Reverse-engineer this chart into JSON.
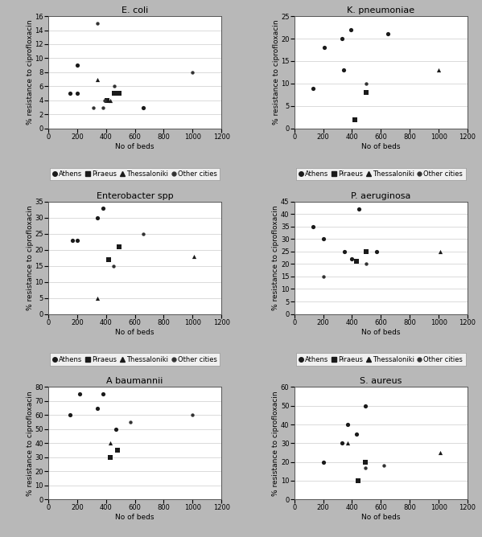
{
  "panels": [
    {
      "title": "E. coli",
      "ylabel": "% resistance to ciprofloxacin",
      "xlabel": "No of beds",
      "xlim": [
        0,
        1200
      ],
      "ylim": [
        0,
        16
      ],
      "yticks": [
        0,
        2,
        4,
        6,
        8,
        10,
        12,
        14,
        16
      ],
      "xticks": [
        0,
        200,
        400,
        600,
        800,
        1000,
        1200
      ],
      "series": {
        "Athens": {
          "x": [
            150,
            200,
            200,
            660
          ],
          "y": [
            5,
            9,
            5,
            3
          ]
        },
        "Piraeus": {
          "x": [
            410,
            460,
            490
          ],
          "y": [
            4,
            5,
            5
          ]
        },
        "Thessaloniki": {
          "x": [
            340,
            430
          ],
          "y": [
            7,
            4
          ]
        },
        "Other cities": {
          "x": [
            310,
            340,
            380,
            390,
            460,
            1000
          ],
          "y": [
            3,
            15,
            3,
            4,
            6,
            8
          ]
        }
      }
    },
    {
      "title": "K. pneumoniae",
      "ylabel": "% resistance to ciprofloxacin",
      "xlabel": "No of beds",
      "xlim": [
        0,
        1200
      ],
      "ylim": [
        0,
        25
      ],
      "yticks": [
        0,
        5,
        10,
        15,
        20,
        25
      ],
      "xticks": [
        0,
        200,
        400,
        600,
        800,
        1000,
        1200
      ],
      "series": {
        "Athens": {
          "x": [
            130,
            210,
            330,
            340,
            390,
            650
          ],
          "y": [
            9,
            18,
            20,
            13,
            22,
            21
          ]
        },
        "Piraeus": {
          "x": [
            420,
            500
          ],
          "y": [
            2,
            8
          ]
        },
        "Thessaloniki": {
          "x": [
            1000
          ],
          "y": [
            13
          ]
        },
        "Other cities": {
          "x": [
            500
          ],
          "y": [
            10
          ]
        }
      }
    },
    {
      "title": "Enterobacter spp",
      "ylabel": "% resistance to ciprofloxacin",
      "xlabel": "No of beds",
      "xlim": [
        0,
        1200
      ],
      "ylim": [
        0,
        35
      ],
      "yticks": [
        0,
        5,
        10,
        15,
        20,
        25,
        30,
        35
      ],
      "xticks": [
        0,
        200,
        400,
        600,
        800,
        1000,
        1200
      ],
      "series": {
        "Athens": {
          "x": [
            170,
            200,
            340,
            380
          ],
          "y": [
            23,
            23,
            30,
            33
          ]
        },
        "Piraeus": {
          "x": [
            420,
            490
          ],
          "y": [
            17,
            21
          ]
        },
        "Thessaloniki": {
          "x": [
            340,
            1010
          ],
          "y": [
            5,
            18
          ]
        },
        "Other cities": {
          "x": [
            450,
            660
          ],
          "y": [
            15,
            25
          ]
        }
      }
    },
    {
      "title": "P. aeruginosa",
      "ylabel": "% resistance to ciprofloxacin",
      "xlabel": "No of beds",
      "xlim": [
        0,
        1200
      ],
      "ylim": [
        0,
        45
      ],
      "yticks": [
        0,
        5,
        10,
        15,
        20,
        25,
        30,
        35,
        40,
        45
      ],
      "xticks": [
        0,
        200,
        400,
        600,
        800,
        1000,
        1200
      ],
      "series": {
        "Athens": {
          "x": [
            130,
            200,
            350,
            400,
            450,
            570
          ],
          "y": [
            35,
            30,
            25,
            22,
            42,
            25
          ]
        },
        "Piraeus": {
          "x": [
            430,
            500
          ],
          "y": [
            21,
            25
          ]
        },
        "Thessaloniki": {
          "x": [
            1010
          ],
          "y": [
            25
          ]
        },
        "Other cities": {
          "x": [
            200,
            500
          ],
          "y": [
            15,
            20
          ]
        }
      }
    },
    {
      "title": "A baumannii",
      "ylabel": "% resistance to ciprofloxacin",
      "xlabel": "No of beds",
      "xlim": [
        0,
        1200
      ],
      "ylim": [
        0,
        80
      ],
      "yticks": [
        0,
        10,
        20,
        30,
        40,
        50,
        60,
        70,
        80
      ],
      "xticks": [
        0,
        200,
        400,
        600,
        800,
        1000,
        1200
      ],
      "series": {
        "Athens": {
          "x": [
            150,
            220,
            340,
            380,
            470
          ],
          "y": [
            60,
            75,
            65,
            75,
            50
          ]
        },
        "Piraeus": {
          "x": [
            430,
            480
          ],
          "y": [
            30,
            35
          ]
        },
        "Thessaloniki": {
          "x": [
            430
          ],
          "y": [
            40
          ]
        },
        "Other cities": {
          "x": [
            570,
            1000
          ],
          "y": [
            55,
            60
          ]
        }
      }
    },
    {
      "title": "S. aureus",
      "ylabel": "% resistance to ciprofloxacin",
      "xlabel": "No of beds",
      "xlim": [
        0,
        1200
      ],
      "ylim": [
        0,
        60
      ],
      "yticks": [
        0,
        10,
        20,
        30,
        40,
        50,
        60
      ],
      "xticks": [
        0,
        200,
        400,
        600,
        800,
        1000,
        1200
      ],
      "series": {
        "Athens": {
          "x": [
            200,
            330,
            370,
            430,
            490
          ],
          "y": [
            20,
            30,
            40,
            35,
            50
          ]
        },
        "Piraeus": {
          "x": [
            440,
            490
          ],
          "y": [
            10,
            20
          ]
        },
        "Thessaloniki": {
          "x": [
            370,
            1010
          ],
          "y": [
            30,
            25
          ]
        },
        "Other cities": {
          "x": [
            490,
            620
          ],
          "y": [
            17,
            18
          ]
        }
      }
    }
  ],
  "series_order": [
    "Athens",
    "Piraeus",
    "Thessaloniki",
    "Other cities"
  ],
  "series_styles": {
    "Athens": {
      "color": "#1a1a1a",
      "marker": "o",
      "markersize": 14,
      "label": "Athens"
    },
    "Piraeus": {
      "color": "#1a1a1a",
      "marker": "s",
      "markersize": 14,
      "label": "Piraeus"
    },
    "Thessaloniki": {
      "color": "#1a1a1a",
      "marker": "^",
      "markersize": 14,
      "label": "Thessaloniki"
    },
    "Other cities": {
      "color": "#333333",
      "marker": "o",
      "markersize": 10,
      "label": "Other cities"
    }
  },
  "outer_bg": "#b8b8b8",
  "panel_bg": "#ffffff",
  "grid_color": "#cccccc",
  "title_fontsize": 8,
  "label_fontsize": 6.5,
  "tick_fontsize": 6,
  "legend_fontsize": 6
}
